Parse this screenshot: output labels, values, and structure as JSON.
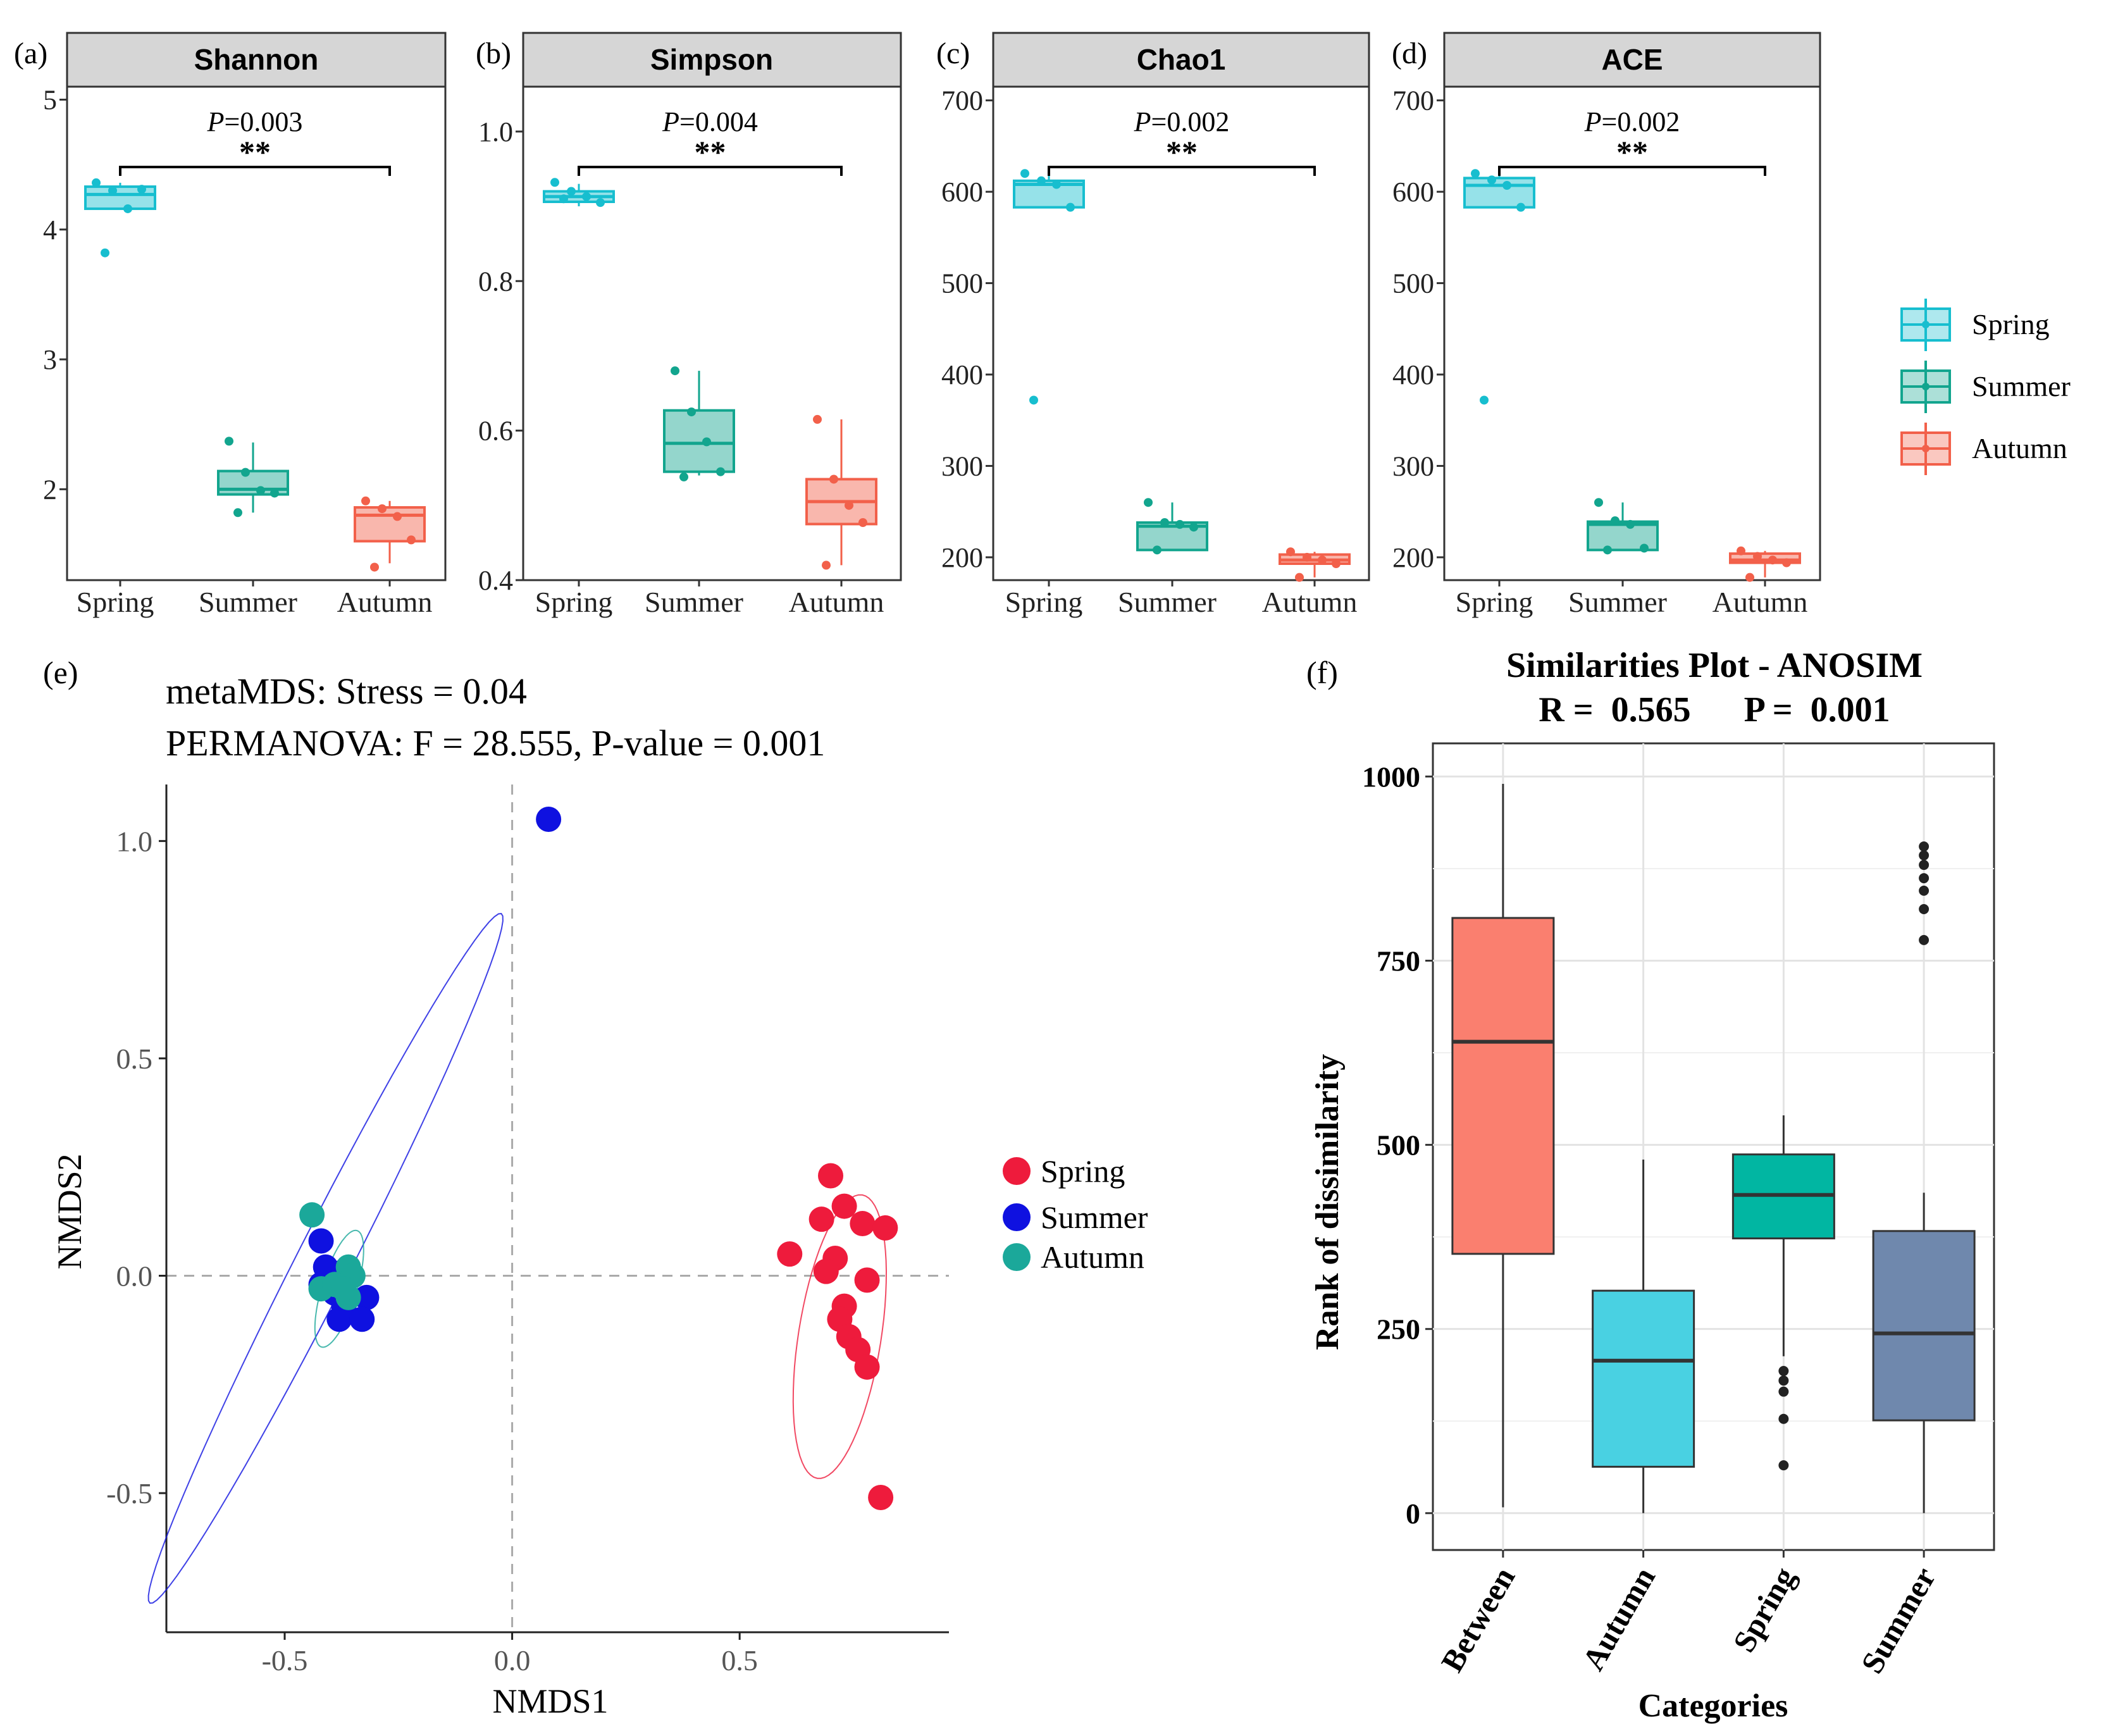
{
  "colors": {
    "spring": "#17BECF",
    "summer": "#12A58E",
    "autumn": "#F2604A",
    "nmds_spring": "#EE1B3C",
    "nmds_summer": "#0F11E0",
    "nmds_autumn": "#1BA89A",
    "anosim_between": "#FA7F6F",
    "anosim_autumn": "#49D1E2",
    "anosim_spring": "#01B6A2",
    "anosim_summer": "#6F88AD"
  },
  "legend_top": {
    "items": [
      "Spring",
      "Summer",
      "Autumn"
    ]
  },
  "legend_nmds": {
    "items": [
      "Spring",
      "Summer",
      "Autumn"
    ]
  },
  "chart_data": [
    {
      "type": "boxplot",
      "panel_label": "(a)",
      "title": "Shannon",
      "categories": [
        "Spring",
        "Summer",
        "Autumn"
      ],
      "ylim": [
        1.3,
        5.1
      ],
      "yticks": [
        2,
        3,
        4,
        5
      ],
      "pvalue_prefix": "P",
      "pvalue_text": "=0.003",
      "significance": "**",
      "compare": [
        0,
        2
      ],
      "boxes": [
        {
          "q1": 4.16,
          "median": 4.27,
          "q3": 4.33,
          "lo": 4.16,
          "hi": 4.36
        },
        {
          "q1": 1.96,
          "median": 2.0,
          "q3": 2.14,
          "lo": 1.82,
          "hi": 2.36
        },
        {
          "q1": 1.6,
          "median": 1.8,
          "q3": 1.86,
          "lo": 1.43,
          "hi": 1.91
        }
      ],
      "points": [
        [
          4.36,
          4.3,
          4.16,
          4.31,
          3.82
        ],
        [
          2.37,
          2.13,
          1.99,
          1.97,
          1.82
        ],
        [
          1.91,
          1.85,
          1.79,
          1.61,
          1.4
        ]
      ]
    },
    {
      "type": "boxplot",
      "panel_label": "(b)",
      "title": "Simpson",
      "categories": [
        "Spring",
        "Summer",
        "Autumn"
      ],
      "ylim": [
        0.4,
        1.06
      ],
      "yticks": [
        "0.4",
        "0.6",
        "0.8",
        "1.0"
      ],
      "pvalue_prefix": "P",
      "pvalue_text": "=0.004",
      "significance": "**",
      "compare": [
        0,
        2
      ],
      "boxes": [
        {
          "q1": 0.906,
          "median": 0.913,
          "q3": 0.92,
          "lo": 0.9,
          "hi": 0.93
        },
        {
          "q1": 0.545,
          "median": 0.583,
          "q3": 0.627,
          "lo": 0.54,
          "hi": 0.68
        },
        {
          "q1": 0.475,
          "median": 0.505,
          "q3": 0.535,
          "lo": 0.42,
          "hi": 0.615
        }
      ],
      "points": [
        [
          0.932,
          0.92,
          0.913,
          0.905,
          0.91
        ],
        [
          0.68,
          0.625,
          0.585,
          0.545,
          0.538
        ],
        [
          0.615,
          0.535,
          0.5,
          0.477,
          0.42
        ]
      ]
    },
    {
      "type": "boxplot",
      "panel_label": "(c)",
      "title": "Chao1",
      "categories": [
        "Spring",
        "Summer",
        "Autumn"
      ],
      "ylim": [
        175,
        715
      ],
      "yticks": [
        200,
        300,
        400,
        500,
        600,
        700
      ],
      "pvalue_prefix": "P",
      "pvalue_text": "=0.002",
      "significance": "**",
      "compare": [
        0,
        2
      ],
      "boxes": [
        {
          "q1": 583,
          "median": 608,
          "q3": 612,
          "lo": 583,
          "hi": 620
        },
        {
          "q1": 208,
          "median": 234,
          "q3": 238,
          "lo": 208,
          "hi": 260
        },
        {
          "q1": 193,
          "median": 197,
          "q3": 203,
          "lo": 178,
          "hi": 206
        }
      ],
      "points": [
        [
          620,
          612,
          608,
          583,
          372
        ],
        [
          260,
          238,
          236,
          233,
          208
        ],
        [
          206,
          200,
          197,
          193,
          178
        ]
      ]
    },
    {
      "type": "boxplot",
      "panel_label": "(d)",
      "title": "ACE",
      "categories": [
        "Spring",
        "Summer",
        "Autumn"
      ],
      "ylim": [
        175,
        715
      ],
      "yticks": [
        200,
        300,
        400,
        500,
        600,
        700
      ],
      "pvalue_prefix": "P",
      "pvalue_text": "=0.002",
      "significance": "**",
      "compare": [
        0,
        2
      ],
      "boxes": [
        {
          "q1": 583,
          "median": 607,
          "q3": 615,
          "lo": 583,
          "hi": 620
        },
        {
          "q1": 208,
          "median": 236,
          "q3": 239,
          "lo": 208,
          "hi": 260
        },
        {
          "q1": 194,
          "median": 197,
          "q3": 204,
          "lo": 178,
          "hi": 207
        }
      ],
      "points": [
        [
          620,
          613,
          607,
          583,
          372
        ],
        [
          260,
          240,
          236,
          210,
          208
        ],
        [
          207,
          201,
          197,
          194,
          178
        ]
      ]
    },
    {
      "type": "scatter",
      "panel_label": "(e)",
      "title_line1": "metaMDS: Stress = 0.04",
      "title_line2": "PERMANOVA: F = 28.555, P-value = 0.001",
      "xlabel": "NMDS1",
      "ylabel": "NMDS2",
      "xlim": [
        -0.76,
        0.96
      ],
      "ylim": [
        -0.82,
        1.13
      ],
      "xticks": [
        "-0.5",
        "0.0",
        "0.5"
      ],
      "xtick_values": [
        -0.5,
        0.0,
        0.5
      ],
      "yticks": [
        "-0.5",
        "0.0",
        "0.5",
        "1.0"
      ],
      "ytick_values": [
        -0.5,
        0.0,
        0.5,
        1.0
      ],
      "series": [
        {
          "name": "Spring",
          "points": [
            [
              0.7,
              0.23
            ],
            [
              0.73,
              0.16
            ],
            [
              0.68,
              0.13
            ],
            [
              0.77,
              0.12
            ],
            [
              0.82,
              0.11
            ],
            [
              0.61,
              0.05
            ],
            [
              0.71,
              0.04
            ],
            [
              0.69,
              0.01
            ],
            [
              0.78,
              -0.01
            ],
            [
              0.73,
              -0.07
            ],
            [
              0.72,
              -0.1
            ],
            [
              0.74,
              -0.14
            ],
            [
              0.76,
              -0.17
            ],
            [
              0.78,
              -0.21
            ],
            [
              0.81,
              -0.51
            ]
          ],
          "ellipse": {
            "cx": 0.72,
            "cy": -0.14,
            "rx": 0.33,
            "ry": 0.095,
            "angle_deg": -81
          }
        },
        {
          "name": "Summer",
          "points": [
            [
              -0.42,
              0.08
            ],
            [
              -0.41,
              0.02
            ],
            [
              -0.37,
              0.01
            ],
            [
              -0.42,
              -0.02
            ],
            [
              -0.39,
              -0.04
            ],
            [
              -0.32,
              -0.05
            ],
            [
              -0.37,
              -0.07
            ],
            [
              -0.38,
              -0.1
            ],
            [
              -0.33,
              -0.1
            ],
            [
              0.08,
              1.05
            ]
          ],
          "ellipse": {
            "cx": -0.41,
            "cy": 0.04,
            "rx": 0.89,
            "ry": 0.063,
            "angle_deg": -63
          }
        },
        {
          "name": "Autumn",
          "points": [
            [
              -0.44,
              0.14
            ],
            [
              -0.36,
              0.02
            ],
            [
              -0.35,
              0.0
            ],
            [
              -0.42,
              -0.03
            ],
            [
              -0.39,
              -0.02
            ],
            [
              -0.36,
              -0.05
            ],
            [
              -0.37,
              -0.03
            ]
          ],
          "ellipse": {
            "cx": -0.38,
            "cy": -0.03,
            "rx": 0.14,
            "ry": 0.04,
            "angle_deg": -73
          }
        }
      ]
    },
    {
      "type": "boxplot",
      "panel_label": "(f)",
      "title": "Similarities Plot - ANOSIM",
      "subtitle": "R =  0.565      P =  0.001",
      "xlabel": "Categories",
      "ylabel": "Rank of dissimilarity",
      "categories": [
        "Between",
        "Autumn",
        "Spring",
        "Summer"
      ],
      "ylim": [
        -50,
        1045
      ],
      "yticks": [
        0,
        250,
        500,
        750,
        1000
      ],
      "boxes": [
        {
          "q1": 352,
          "median": 640,
          "q3": 808,
          "lo": 8,
          "hi": 990
        },
        {
          "q1": 63,
          "median": 207,
          "q3": 302,
          "lo": 0,
          "hi": 480
        },
        {
          "q1": 373,
          "median": 432,
          "q3": 487,
          "lo": 213,
          "hi": 540
        },
        {
          "q1": 126,
          "median": 244,
          "q3": 383,
          "lo": 0,
          "hi": 435
        }
      ],
      "outliers": [
        [],
        [],
        [
          193,
          180,
          165,
          128,
          65
        ],
        [
          905,
          893,
          880,
          862,
          845,
          820,
          778
        ]
      ]
    }
  ]
}
